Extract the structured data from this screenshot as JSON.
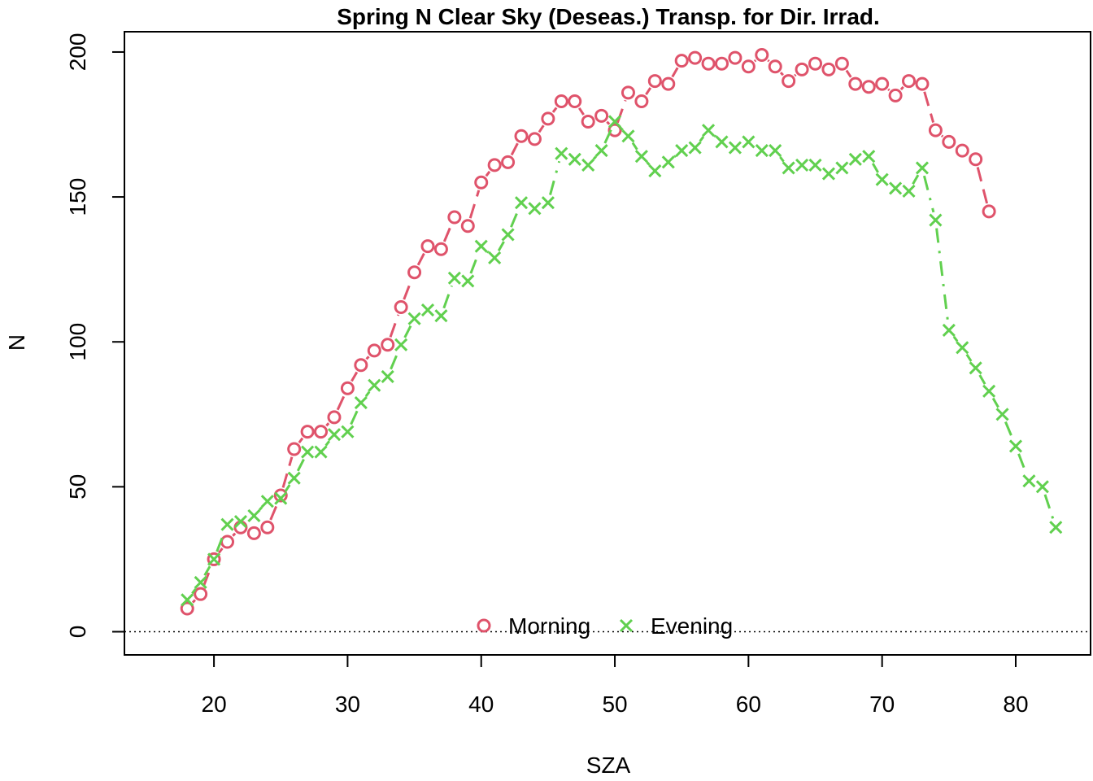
{
  "chart_data": {
    "type": "line",
    "title": "Spring N Clear Sky (Deseas.) Transp. for Dir. Irrad.",
    "xlabel": "SZA",
    "ylabel": "N",
    "xlim": [
      13.3,
      85.6
    ],
    "ylim": [
      -8,
      207
    ],
    "x_ticks": [
      20,
      30,
      40,
      50,
      60,
      70,
      80
    ],
    "y_ticks": [
      0,
      50,
      100,
      150,
      200
    ],
    "reference_line": {
      "y": 0,
      "style": "dotted"
    },
    "legend": {
      "position": "bottom-center",
      "entries": [
        "Morning",
        "Evening"
      ]
    },
    "series": [
      {
        "name": "Morning",
        "color": "#DF536B",
        "marker": "circle",
        "x": [
          18,
          19,
          20,
          21,
          22,
          23,
          24,
          25,
          26,
          27,
          28,
          29,
          30,
          31,
          32,
          33,
          34,
          35,
          36,
          37,
          38,
          39,
          40,
          41,
          42,
          43,
          44,
          45,
          46,
          47,
          48,
          49,
          50,
          51,
          52,
          53,
          54,
          55,
          56,
          57,
          58,
          59,
          60,
          61,
          62,
          63,
          64,
          65,
          66,
          67,
          68,
          69,
          70,
          71,
          72,
          73,
          74,
          75,
          76,
          77,
          78
        ],
        "y": [
          8,
          13,
          25,
          31,
          36,
          34,
          36,
          47,
          63,
          69,
          69,
          74,
          84,
          92,
          97,
          99,
          112,
          124,
          133,
          132,
          143,
          140,
          155,
          161,
          162,
          171,
          170,
          177,
          183,
          183,
          176,
          178,
          173,
          186,
          183,
          190,
          189,
          197,
          198,
          196,
          196,
          198,
          195,
          199,
          195,
          190,
          194,
          196,
          194,
          196,
          189,
          188,
          189,
          185,
          190,
          189,
          173,
          169,
          166,
          163,
          145
        ]
      },
      {
        "name": "Evening",
        "color": "#61D04F",
        "marker": "cross",
        "x": [
          18,
          19,
          20,
          21,
          22,
          23,
          24,
          25,
          26,
          27,
          28,
          29,
          30,
          31,
          32,
          33,
          34,
          35,
          36,
          37,
          38,
          39,
          40,
          41,
          42,
          43,
          44,
          45,
          46,
          47,
          48,
          49,
          50,
          51,
          52,
          53,
          54,
          55,
          56,
          57,
          58,
          59,
          60,
          61,
          62,
          63,
          64,
          65,
          66,
          67,
          68,
          69,
          70,
          71,
          72,
          73,
          74,
          75,
          76,
          77,
          78,
          79,
          80,
          81,
          82,
          83
        ],
        "y": [
          11,
          17,
          25,
          37,
          38,
          40,
          45,
          46,
          53,
          62,
          62,
          68,
          69,
          79,
          85,
          88,
          99,
          108,
          111,
          109,
          122,
          121,
          133,
          129,
          137,
          148,
          146,
          148,
          165,
          163,
          161,
          166,
          176,
          171,
          164,
          159,
          162,
          166,
          167,
          173,
          169,
          167,
          169,
          166,
          166,
          160,
          161,
          161,
          158,
          160,
          163,
          164,
          156,
          153,
          152,
          160,
          142,
          104,
          98,
          91,
          83,
          75,
          64,
          52,
          50,
          36
        ]
      }
    ]
  }
}
